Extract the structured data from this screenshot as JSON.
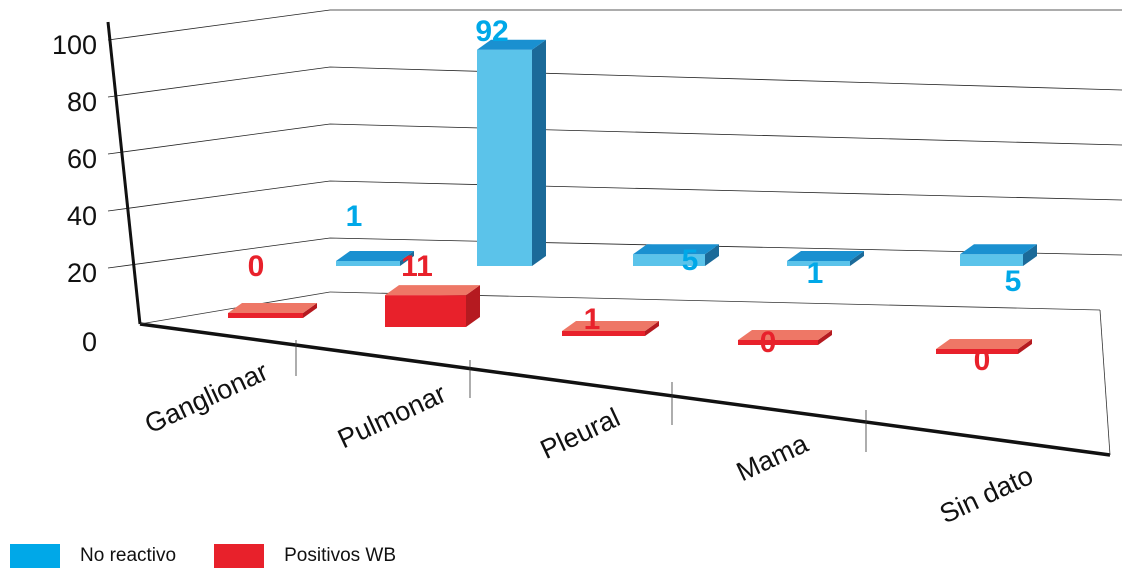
{
  "chart_data": {
    "type": "bar",
    "title": "",
    "xlabel": "",
    "ylabel": "",
    "categories": [
      "Ganglionar",
      "Pulmonar",
      "Pleural",
      "Mama",
      "Sin dato"
    ],
    "yticks": [
      "0",
      "20",
      "40",
      "60",
      "80",
      "100"
    ],
    "ylim": [
      0,
      100
    ],
    "grid": true,
    "legend_position": "bottom-left",
    "series": [
      {
        "name": "No reactivo",
        "values": [
          1,
          92,
          5,
          1,
          5
        ],
        "labels": [
          "1",
          "92",
          "5",
          "1",
          "5"
        ],
        "color": "#00a8e8"
      },
      {
        "name": "Positivos WB",
        "values": [
          0,
          11,
          1,
          0,
          0
        ],
        "labels": [
          "0",
          "11",
          "1",
          "0",
          "0"
        ],
        "color": "#e8212b"
      }
    ]
  }
}
